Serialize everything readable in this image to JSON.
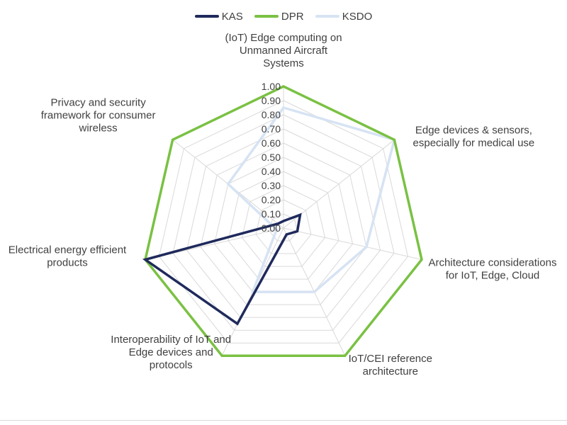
{
  "chart_data": {
    "type": "radar",
    "categories": [
      "(IoT) Edge computing on Unmanned Aircraft Systems",
      "Edge devices & sensors, especially for medical use",
      "Architecture considerations for IoT, Edge, Cloud",
      "IoT/CEI reference architecture",
      "Interoperability of IoT and Edge devices and protocols",
      "Electrical energy efficient products",
      "Privacy and security framework for consumer wireless"
    ],
    "category_label_lines": [
      [
        "(IoT) Edge computing on",
        "Unmanned Aircraft",
        "Systems"
      ],
      [
        "Edge devices & sensors,",
        "especially for medical use"
      ],
      [
        "Architecture considerations",
        "for IoT, Edge, Cloud"
      ],
      [
        "IoT/CEI reference",
        "architecture"
      ],
      [
        "Interoperability of IoT and",
        "Edge devices and",
        "protocols"
      ],
      [
        "Electrical energy efficient",
        "products"
      ],
      [
        "Privacy and security",
        "framework for consumer",
        "wireless"
      ]
    ],
    "tick_labels": [
      "1.00",
      "0.90",
      "0.80",
      "0.70",
      "0.60",
      "0.50",
      "0.40",
      "0.30",
      "0.20",
      "0.10",
      "0.00"
    ],
    "rlim": [
      0,
      1
    ],
    "rstep": 0.1,
    "grid": true,
    "legend_position": "top",
    "series": [
      {
        "name": "KAS",
        "color": "#1f2a5c",
        "values": [
          0.05,
          0.15,
          0.1,
          0.05,
          0.75,
          1.0,
          0.05
        ]
      },
      {
        "name": "DPR",
        "color": "#7ac143",
        "values": [
          1.0,
          1.0,
          1.0,
          1.0,
          1.0,
          1.0,
          1.0
        ]
      },
      {
        "name": "KSDO",
        "color": "#d6e3f3",
        "values": [
          0.85,
          1.0,
          0.6,
          0.5,
          0.5,
          0.05,
          0.5
        ]
      }
    ]
  }
}
